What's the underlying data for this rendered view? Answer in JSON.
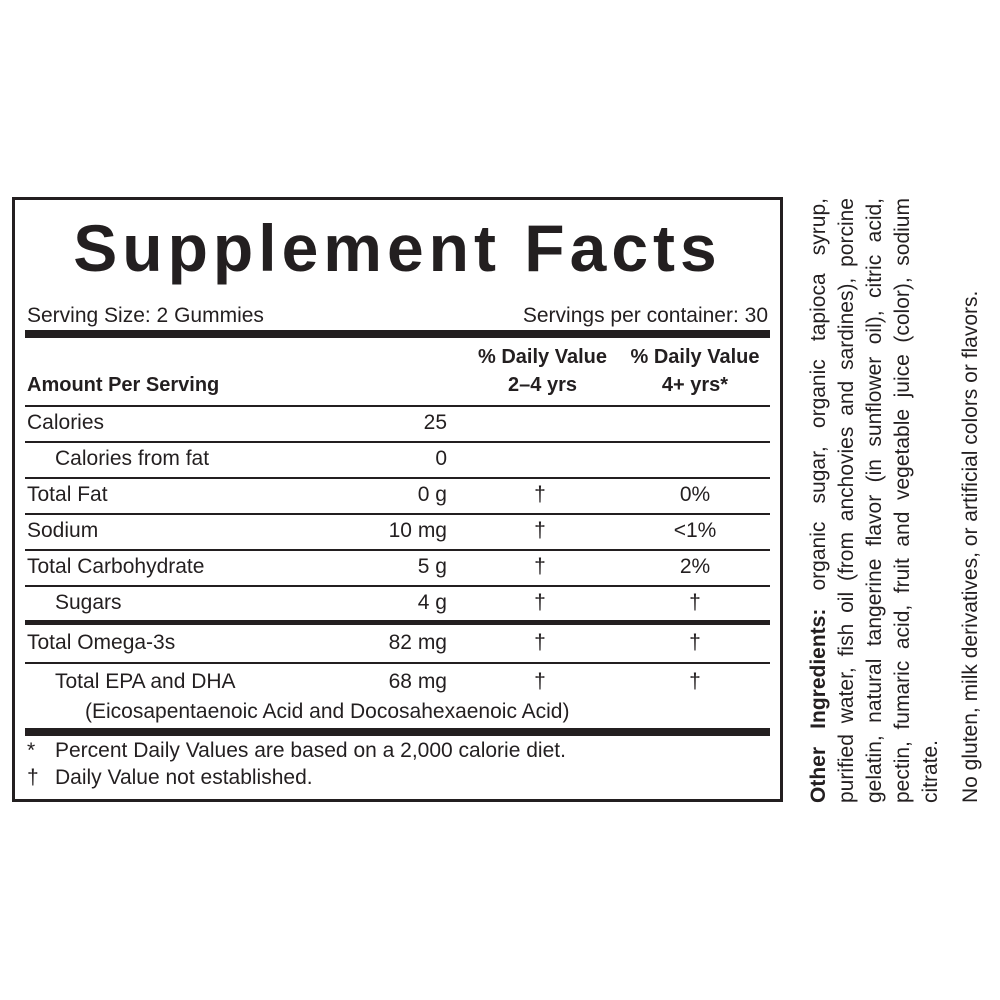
{
  "panel": {
    "title": "Supplement Facts",
    "serving_size": "Serving Size: 2 Gummies",
    "servings_per_container": "Servings per container: 30",
    "header": {
      "amount": "Amount Per Serving",
      "dv_2_4": [
        "% Daily Value",
        "2–4 yrs"
      ],
      "dv_4plus": [
        "% Daily Value",
        "4+ yrs*"
      ]
    },
    "rows": [
      [
        "Calories",
        "25"
      ],
      [
        "Calories from fat",
        "0"
      ],
      [
        "Total Fat",
        "0 g",
        "†",
        "0%"
      ],
      [
        "Sodium",
        "10 mg",
        "†",
        "<1%"
      ],
      [
        "Total Carbohydrate",
        "5 g",
        "†",
        "2%"
      ],
      [
        "Sugars",
        "4 g",
        "†",
        "†"
      ],
      [
        "Total Omega-3s",
        "82 mg",
        "†",
        "†"
      ],
      [
        "Total EPA and DHA",
        "68 mg",
        "†",
        "†"
      ]
    ],
    "epa_dha_note": "(Eicosapentaenoic Acid and Docosahexaenoic Acid)",
    "footnotes": [
      [
        "*",
        "Percent Daily Values are based on a 2,000 calorie diet."
      ],
      [
        "†",
        "Daily Value not established."
      ]
    ]
  },
  "side": {
    "ingredients_label": "Other Ingredients:",
    "ingredients": "organic sugar, organic tapioca syrup, purified water, fish oil (from anchovies and sardines), porcine gelatin, natural tangerine flavor (in sunflower oil), citric acid, pectin, fumaric acid, fruit and vegetable juice (color), sodium citrate.",
    "free_from": "No gluten, milk derivatives, or artificial colors or flavors."
  }
}
